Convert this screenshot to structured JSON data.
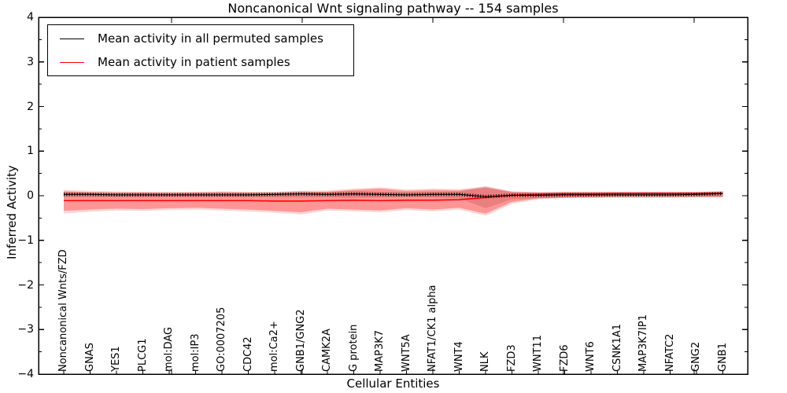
{
  "chart_data": {
    "type": "line",
    "title": "Noncanonical Wnt signaling pathway -- 154 samples",
    "xlabel": "Cellular Entities",
    "ylabel": "Inferred Activity",
    "ylim": [
      -4,
      4
    ],
    "grid": false,
    "legend_position": "upper left",
    "ytick_labels": [
      "4",
      "3",
      "2",
      "1",
      "0",
      "−1",
      "−2",
      "−3",
      "−4"
    ],
    "ytick_values": [
      4,
      3,
      2,
      1,
      0,
      -1,
      -2,
      -3,
      -4
    ],
    "categories": [
      "Noncanonical Wnts/FZD",
      "GNAS",
      "YES1",
      "PLCG1",
      "mol:DAG",
      "mol:IP3",
      "GO:0007205",
      "CDC42",
      "mol:Ca2+",
      "GNB1/GNG2",
      "CAMK2A",
      "G protein",
      "MAP3K7",
      "WNT5A",
      "NFAT1/CK1 alpha",
      "WNT4",
      "NLK",
      "FZD3",
      "WNT11",
      "FZD6",
      "WNT6",
      "CSNK1A1",
      "MAP3K7IP1",
      "NFATC2",
      "GNG2",
      "GNB1"
    ],
    "legend_items": [
      {
        "label": "Mean activity in all permuted samples",
        "color": "#000000"
      },
      {
        "label": "Mean activity in patient samples",
        "color": "#ff0000"
      }
    ],
    "series": [
      {
        "name": "Mean activity in all permuted samples",
        "color": "#000000",
        "values": [
          0.03,
          0.03,
          0.02,
          0.02,
          0.02,
          0.02,
          0.02,
          0.02,
          0.03,
          0.04,
          0.03,
          0.04,
          0.03,
          0.02,
          0.03,
          0.03,
          -0.02,
          0.01,
          0.01,
          0.02,
          0.02,
          0.02,
          0.02,
          0.02,
          0.03,
          0.05
        ],
        "band_upper": [
          0.08,
          0.07,
          0.07,
          0.07,
          0.07,
          0.07,
          0.07,
          0.07,
          0.08,
          0.1,
          0.08,
          0.11,
          0.09,
          0.08,
          0.09,
          0.1,
          0.21,
          0.09,
          0.08,
          0.08,
          0.08,
          0.08,
          0.08,
          0.08,
          0.08,
          0.1
        ],
        "band_lower": [
          -0.03,
          -0.03,
          -0.03,
          -0.03,
          -0.03,
          -0.03,
          -0.03,
          -0.03,
          -0.03,
          -0.04,
          -0.03,
          -0.05,
          -0.04,
          -0.03,
          -0.04,
          -0.06,
          -0.28,
          -0.08,
          -0.06,
          -0.05,
          -0.05,
          -0.05,
          -0.05,
          -0.05,
          -0.04,
          -0.02
        ]
      },
      {
        "name": "Mean activity in patient samples",
        "color": "#ff0000",
        "values": [
          -0.11,
          -0.11,
          -0.11,
          -0.11,
          -0.11,
          -0.11,
          -0.11,
          -0.11,
          -0.12,
          -0.12,
          -0.11,
          -0.1,
          -0.11,
          -0.1,
          -0.1,
          -0.09,
          -0.04,
          0.01,
          0.03,
          0.04,
          0.04,
          0.05,
          0.05,
          0.05,
          0.05,
          0.05
        ],
        "band_upper": [
          0.1,
          0.08,
          0.07,
          0.07,
          0.06,
          0.07,
          0.08,
          0.07,
          0.06,
          0.08,
          0.09,
          0.13,
          0.16,
          0.11,
          0.13,
          0.12,
          0.18,
          0.08,
          0.07,
          0.08,
          0.08,
          0.08,
          0.08,
          0.08,
          0.08,
          0.09
        ],
        "band_lower": [
          -0.34,
          -0.31,
          -0.29,
          -0.3,
          -0.28,
          -0.27,
          -0.29,
          -0.31,
          -0.34,
          -0.37,
          -0.29,
          -0.31,
          -0.33,
          -0.28,
          -0.31,
          -0.27,
          -0.4,
          -0.14,
          -0.06,
          -0.04,
          -0.03,
          -0.02,
          -0.02,
          -0.02,
          -0.02,
          -0.03
        ],
        "band_outer_upper": [
          0.13,
          0.11,
          0.1,
          0.09,
          0.09,
          0.09,
          0.1,
          0.09,
          0.09,
          0.11,
          0.12,
          0.16,
          0.19,
          0.14,
          0.16,
          0.15,
          0.21,
          0.1,
          0.08,
          0.09,
          0.09,
          0.09,
          0.09,
          0.09,
          0.09,
          0.1
        ],
        "band_outer_lower": [
          -0.4,
          -0.36,
          -0.33,
          -0.34,
          -0.32,
          -0.31,
          -0.33,
          -0.35,
          -0.38,
          -0.42,
          -0.33,
          -0.35,
          -0.37,
          -0.32,
          -0.35,
          -0.31,
          -0.45,
          -0.18,
          -0.08,
          -0.05,
          -0.04,
          -0.03,
          -0.03,
          -0.03,
          -0.03,
          -0.04
        ]
      }
    ],
    "colors": {
      "permuted_line": "#000000",
      "permuted_band": "#d9d9d9",
      "patient_line": "#ff0000",
      "patient_band": "#f4a5a5",
      "background": "#ffffff",
      "axis": "#000000"
    }
  }
}
